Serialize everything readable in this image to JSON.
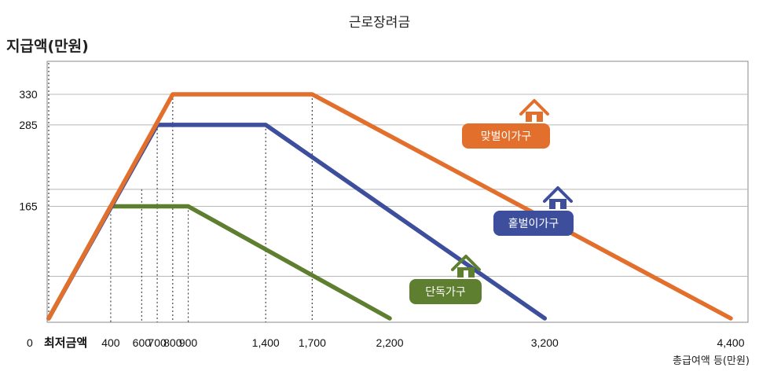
{
  "title": "근로장려금",
  "y_axis_label": "지급액(만원)",
  "x_axis_label": "총급여액 등(만원)",
  "origin_label": "0",
  "min_wage_label": "최저금액",
  "chart_data": {
    "type": "line",
    "title": "근로장려금",
    "xlabel": "총급여액 등(만원)",
    "ylabel": "지급액(만원)",
    "xlim": [
      0,
      4400
    ],
    "ylim": [
      0,
      330
    ],
    "x_ticks": [
      "400",
      "600",
      "700",
      "800",
      "900",
      "1,400",
      "1,700",
      "2,200",
      "3,200",
      "4,400"
    ],
    "y_ticks": [
      "165",
      "285",
      "330"
    ],
    "grid": true,
    "series": [
      {
        "name": "맞벌이가구",
        "color": "#e36f2c",
        "x": [
          0,
          800,
          1700,
          4400
        ],
        "y": [
          0,
          330,
          330,
          0
        ]
      },
      {
        "name": "홑벌이가구",
        "color": "#3d4f9c",
        "x": [
          0,
          700,
          1400,
          3200
        ],
        "y": [
          0,
          285,
          285,
          0
        ]
      },
      {
        "name": "단독가구",
        "color": "#5e7f2f",
        "x": [
          0,
          400,
          900,
          2200
        ],
        "y": [
          0,
          165,
          165,
          0
        ]
      }
    ]
  }
}
